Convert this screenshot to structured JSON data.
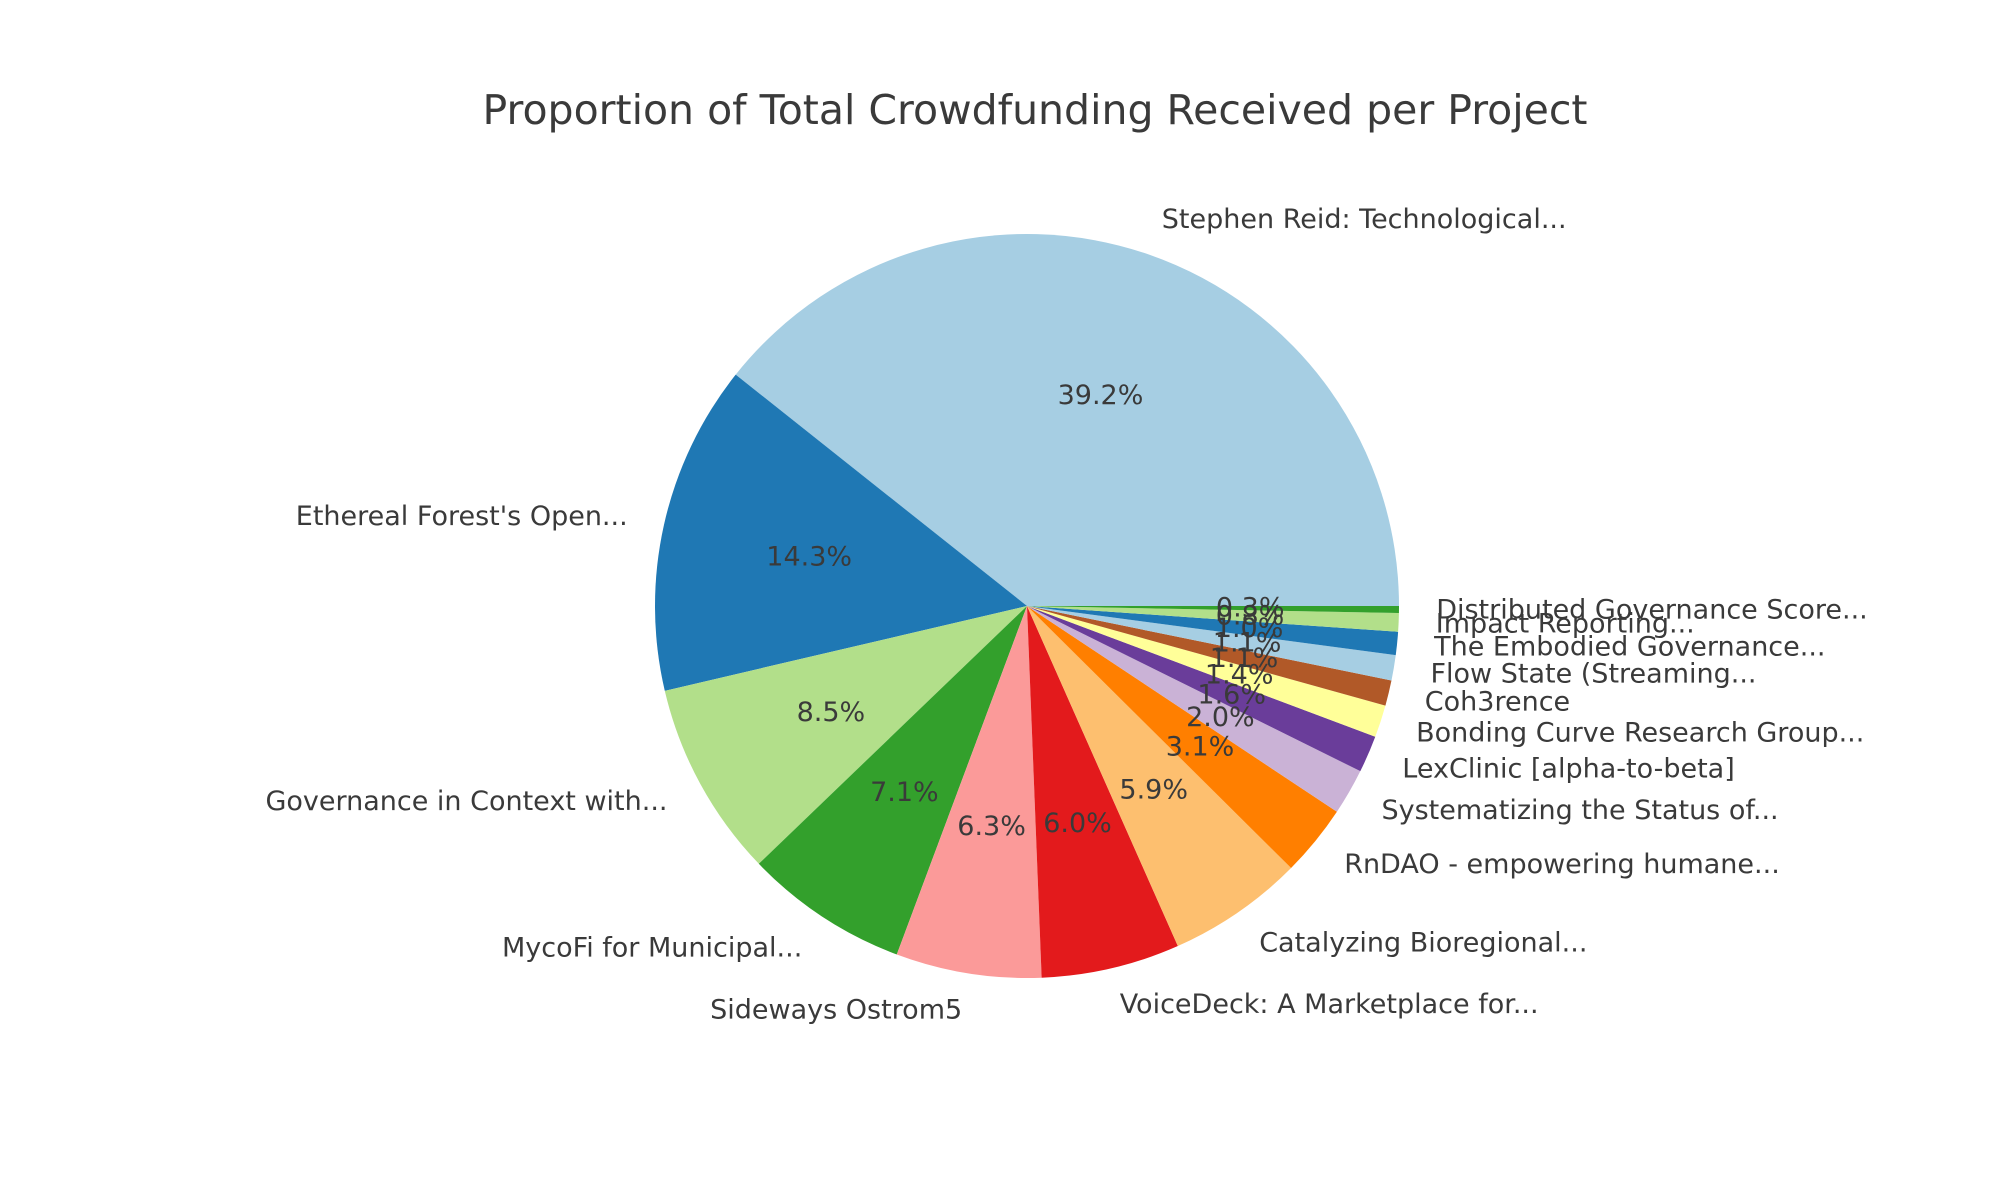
{
  "chart_data": {
    "type": "pie",
    "title": "Proportion of Total Crowdfunding Received per Project",
    "start_angle_deg": 0,
    "direction": "counterclockwise",
    "legend_position": "none",
    "label_distance": 1.1,
    "pct_distance": 0.6,
    "background_color": "#ffffff",
    "text_color": "#3a3a3a",
    "slices": [
      {
        "label": "Stephen Reid: Technological...",
        "pct": 39.2,
        "pct_label": "39.2%",
        "color": "#a6cee3"
      },
      {
        "label": "Ethereal Forest's Open...",
        "pct": 14.3,
        "pct_label": "14.3%",
        "color": "#1f78b4"
      },
      {
        "label": "Governance in Context with...",
        "pct": 8.5,
        "pct_label": "8.5%",
        "color": "#b2df8a"
      },
      {
        "label": "MycoFi for Municipal...",
        "pct": 7.1,
        "pct_label": "7.1%",
        "color": "#33a02c"
      },
      {
        "label": "Sideways Ostrom5",
        "pct": 6.3,
        "pct_label": "6.3%",
        "color": "#fb9a99"
      },
      {
        "label": "VoiceDeck: A Marketplace for...",
        "pct": 6.0,
        "pct_label": "6.0%",
        "color": "#e31a1c"
      },
      {
        "label": "Catalyzing Bioregional...",
        "pct": 5.9,
        "pct_label": "5.9%",
        "color": "#fdbf6f"
      },
      {
        "label": "RnDAO - empowering humane...",
        "pct": 3.1,
        "pct_label": "3.1%",
        "color": "#ff7f00"
      },
      {
        "label": "Systematizing the Status of...",
        "pct": 2.0,
        "pct_label": "2.0%",
        "color": "#cab2d6"
      },
      {
        "label": "LexClinic [alpha-to-beta]",
        "pct": 1.6,
        "pct_label": "1.6%",
        "color": "#6a3d9a"
      },
      {
        "label": "Bonding Curve Research Group...",
        "pct": 1.4,
        "pct_label": "1.4%",
        "color": "#ffff99"
      },
      {
        "label": "Coh3rence",
        "pct": 1.1,
        "pct_label": "1.1%",
        "color": "#b15928"
      },
      {
        "label": "Flow State (Streaming...",
        "pct": 1.1,
        "pct_label": "1.1%",
        "color": "#a6cee3"
      },
      {
        "label": "The Embodied Governance...",
        "pct": 1.0,
        "pct_label": "1.0%",
        "color": "#1f78b4"
      },
      {
        "label": "Impact Reporting...",
        "pct": 0.8,
        "pct_label": "0.8%",
        "color": "#b2df8a"
      },
      {
        "label": "Distributed Governance Score...",
        "pct": 0.3,
        "pct_label": "0.3%",
        "color": "#33a02c"
      }
    ]
  }
}
